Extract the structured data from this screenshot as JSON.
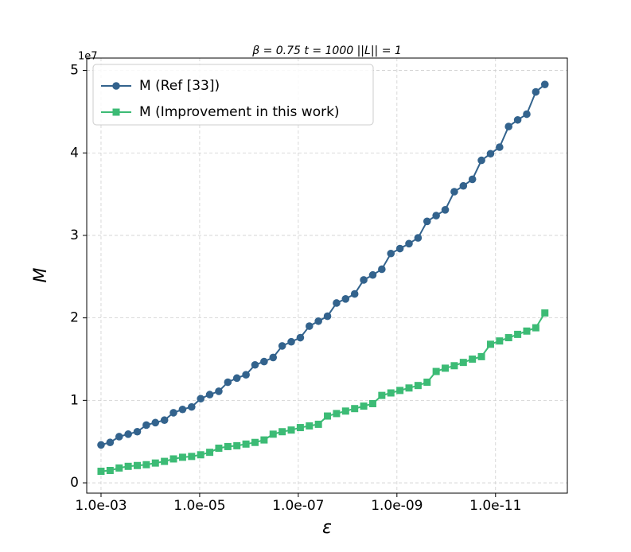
{
  "chart_data": {
    "type": "line",
    "title": "β = 0.75 t = 1000 ||L|| = 1",
    "x_label": "ε",
    "y_label": "M",
    "y_offset_label": "1e7",
    "x": [
      0.001,
      0.0006551,
      0.0004292,
      0.0002812,
      0.0001842,
      0.0001207,
      7.906e-05,
      5.179e-05,
      3.393e-05,
      2.223e-05,
      1.456e-05,
      9.541e-06,
      6.251e-06,
      4.095e-06,
      2.683e-06,
      1.758e-06,
      1.151e-06,
      7.543e-07,
      4.942e-07,
      3.237e-07,
      2.121e-07,
      1.389e-07,
      9.103e-08,
      5.964e-08,
      3.907e-08,
      2.56e-08,
      1.677e-08,
      1.099e-08,
      7.197e-09,
      4.715e-09,
      3.089e-09,
      2.024e-09,
      1.326e-09,
      8.685e-10,
      5.69e-10,
      3.728e-10,
      2.442e-10,
      1.6e-10,
      1.048e-10,
      6.866e-11,
      4.498e-11,
      2.947e-11,
      1.931e-11,
      1.265e-11,
      8.286e-12,
      5.429e-12,
      3.556e-12,
      2.33e-12,
      1.526e-12,
      1e-12
    ],
    "series": [
      {
        "name": "M (Ref [33])",
        "color": "#33638d",
        "marker": "circle",
        "values": [
          0.46,
          0.49,
          0.56,
          0.59,
          0.62,
          0.7,
          0.73,
          0.76,
          0.85,
          0.89,
          0.92,
          1.02,
          1.07,
          1.11,
          1.22,
          1.27,
          1.31,
          1.43,
          1.47,
          1.52,
          1.66,
          1.71,
          1.76,
          1.9,
          1.96,
          2.02,
          2.18,
          2.23,
          2.29,
          2.46,
          2.52,
          2.59,
          2.78,
          2.84,
          2.9,
          2.97,
          3.17,
          3.24,
          3.31,
          3.53,
          3.6,
          3.68,
          3.91,
          3.99,
          4.07,
          4.32,
          4.4,
          4.47,
          4.74,
          4.83
        ]
      },
      {
        "name": "M (Improvement in this work)",
        "color": "#3cbb75",
        "marker": "square",
        "values": [
          0.14,
          0.15,
          0.18,
          0.2,
          0.21,
          0.22,
          0.24,
          0.26,
          0.29,
          0.31,
          0.32,
          0.34,
          0.37,
          0.42,
          0.44,
          0.45,
          0.47,
          0.49,
          0.52,
          0.59,
          0.62,
          0.64,
          0.67,
          0.69,
          0.71,
          0.81,
          0.84,
          0.87,
          0.9,
          0.93,
          0.96,
          1.06,
          1.09,
          1.12,
          1.15,
          1.18,
          1.22,
          1.35,
          1.39,
          1.42,
          1.46,
          1.5,
          1.53,
          1.68,
          1.72,
          1.76,
          1.8,
          1.84,
          1.88,
          2.06
        ]
      }
    ],
    "x_scale": "log",
    "xlim": [
      0.00195,
      3.5e-13
    ],
    "xticks": [
      {
        "value": 0.001,
        "label": "1.0e-03"
      },
      {
        "value": 1e-05,
        "label": "1.0e-05"
      },
      {
        "value": 1e-07,
        "label": "1.0e-07"
      },
      {
        "value": 1e-09,
        "label": "1.0e-09"
      },
      {
        "value": 1e-11,
        "label": "1.0e-11"
      }
    ],
    "ylim": [
      -0.125,
      5.15
    ],
    "yticks": [
      0,
      1,
      2,
      3,
      4,
      5
    ],
    "grid": true,
    "legend": "upper left"
  }
}
